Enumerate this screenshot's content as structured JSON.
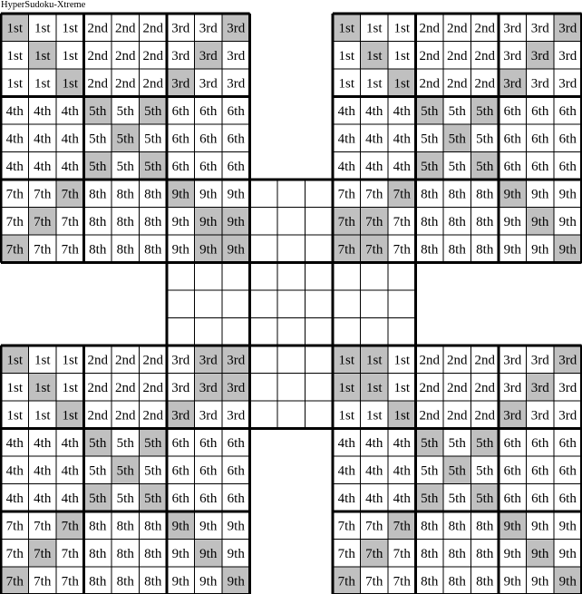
{
  "title": "HyperSudoku-Xtreme",
  "labels": [
    "1st",
    "2nd",
    "3rd",
    "4th",
    "5th",
    "6th",
    "7th",
    "8th",
    "9th"
  ],
  "colors": {
    "shade": "#c0c0c0",
    "cell": "#ffffff",
    "line": "#000000"
  },
  "base_shaded": [
    "0,0",
    "1,1",
    "2,2",
    "0,8",
    "1,7",
    "2,6",
    "3,3",
    "3,5",
    "4,4",
    "5,3",
    "5,5",
    "6,2",
    "7,1",
    "8,0",
    "6,6",
    "7,7",
    "8,8"
  ],
  "grids": [
    {
      "name": "top-left",
      "extra_shaded": [
        "7,8",
        "8,7"
      ]
    },
    {
      "name": "top-right",
      "extra_shaded": [
        "7,0",
        "8,1"
      ]
    },
    {
      "name": "bottom-left",
      "extra_shaded": [
        "0,7",
        "1,8"
      ]
    },
    {
      "name": "bottom-right",
      "extra_shaded": [
        "0,1",
        "1,0"
      ]
    }
  ],
  "center_grid": {
    "name": "center",
    "filled": false
  }
}
